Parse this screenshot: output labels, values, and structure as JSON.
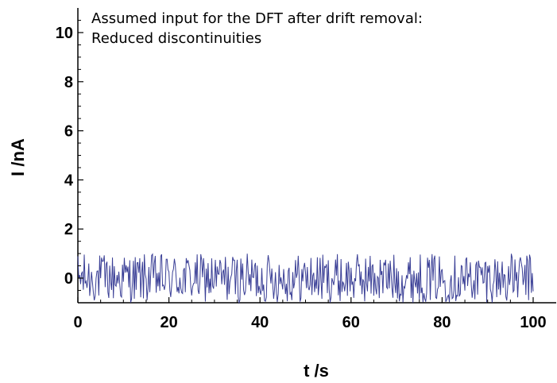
{
  "chart_data": {
    "type": "line",
    "title_lines": [
      "Assumed input for the DFT after drift removal:",
      "Reduced discontinuities"
    ],
    "xlabel": "t /s",
    "ylabel": "I /nA",
    "xlim": [
      0,
      105
    ],
    "ylim": [
      -1,
      11
    ],
    "x_ticks": [
      0,
      20,
      40,
      60,
      80,
      100
    ],
    "x_tick_labels": [
      "0",
      "20",
      "40",
      "60",
      "80",
      "100"
    ],
    "y_ticks": [
      0,
      2,
      4,
      6,
      8,
      10
    ],
    "y_tick_labels": [
      "0",
      "2",
      "4",
      "6",
      "8",
      "10"
    ],
    "grid": false,
    "series": [
      {
        "color": "#3a3f96",
        "x_start": 0,
        "x_end": 100,
        "sample_count": 500,
        "value_range": [
          -1,
          1
        ],
        "description": "random noise"
      }
    ]
  }
}
